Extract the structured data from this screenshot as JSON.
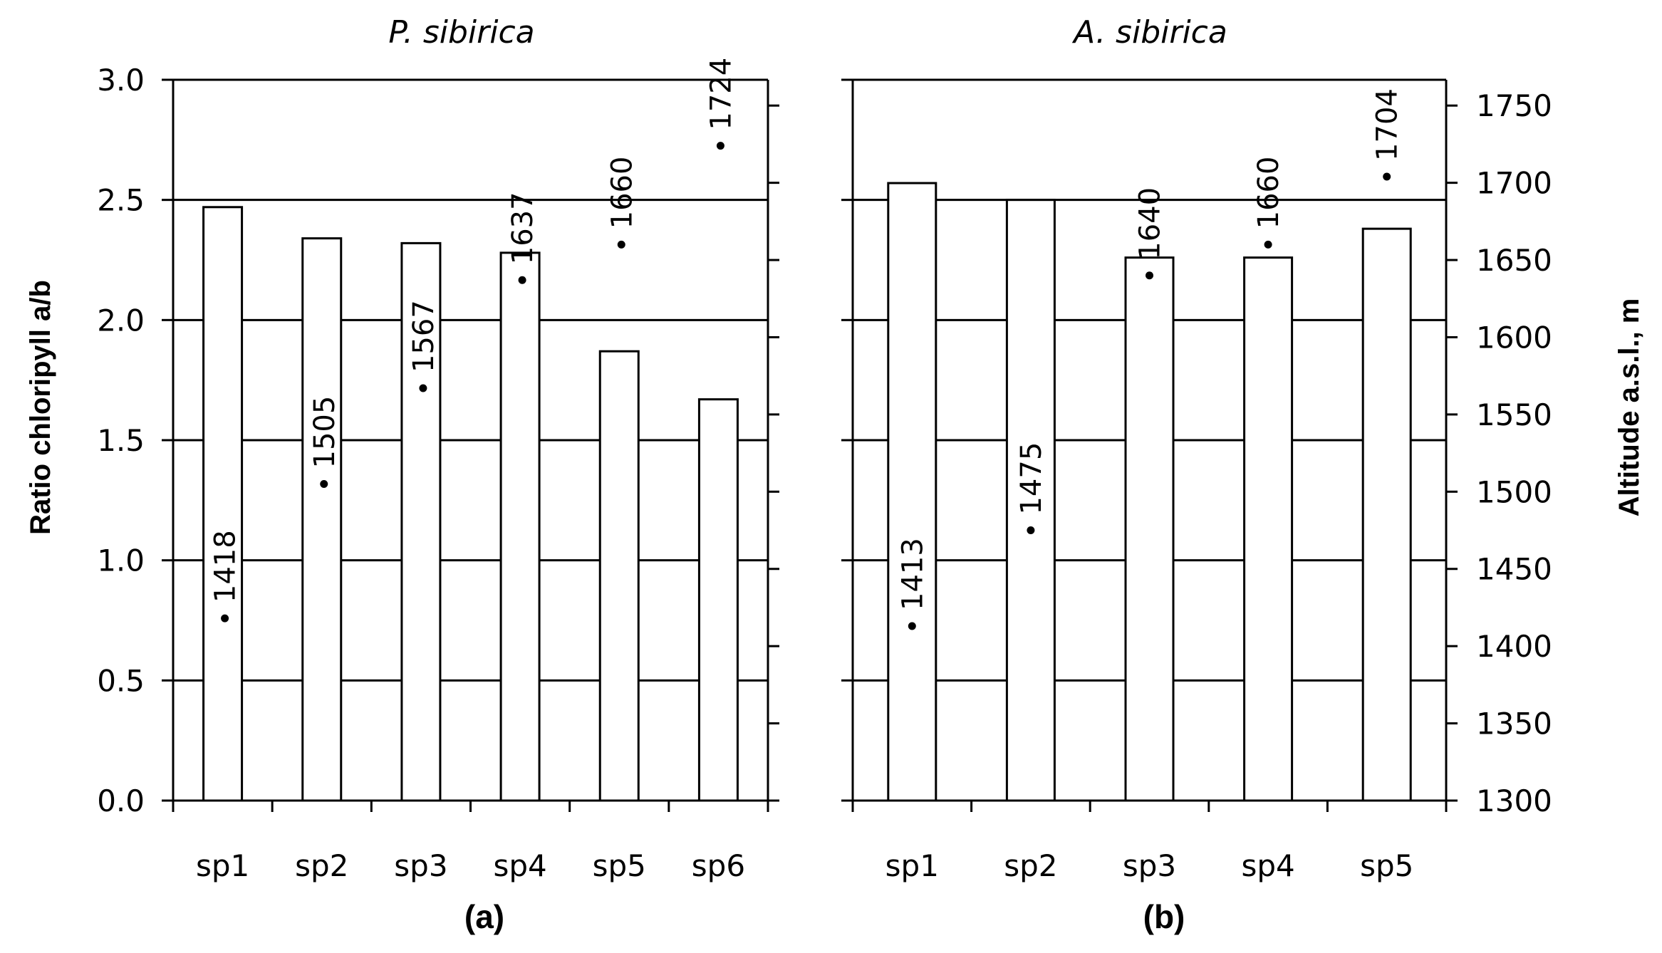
{
  "chart_data": [
    {
      "type": "bar",
      "panel_label": "(a)",
      "title": "P. sibirica",
      "ylabel": "Ratio chloripyll  a/b",
      "ylim": [
        0,
        3.0
      ],
      "yticks": [
        "0.0",
        "0.5",
        "1.0",
        "1.5",
        "2.0",
        "2.5",
        "3.0"
      ],
      "categories": [
        "sp1",
        "sp2",
        "sp3",
        "sp4",
        "sp5",
        "sp6"
      ],
      "values": [
        2.47,
        2.34,
        2.32,
        2.28,
        1.87,
        1.67
      ],
      "altitude": [
        1418,
        1505,
        1567,
        1637,
        1660,
        1724
      ],
      "altitude_labels": [
        "1418",
        "1505",
        "1567",
        "1637",
        "1660",
        "1724"
      ],
      "y2lim": [
        1300,
        1766.7
      ],
      "grid": true
    },
    {
      "type": "bar",
      "panel_label": "(b)",
      "title": "A. sibirica",
      "y2label": "Altitude a.s.l., m",
      "ylim": [
        0,
        3.0
      ],
      "y2ticks": [
        "1300",
        "1350",
        "1400",
        "1450",
        "1500",
        "1550",
        "1600",
        "1650",
        "1700",
        "1750"
      ],
      "categories": [
        "sp1",
        "sp2",
        "sp3",
        "sp4",
        "sp5"
      ],
      "values": [
        2.57,
        2.5,
        2.26,
        2.26,
        2.38
      ],
      "altitude": [
        1413,
        1475,
        1640,
        1660,
        1704
      ],
      "altitude_labels": [
        "1413",
        "1475",
        "1640",
        "1660",
        "1704"
      ],
      "y2lim": [
        1300,
        1766.7
      ],
      "grid": true
    }
  ]
}
